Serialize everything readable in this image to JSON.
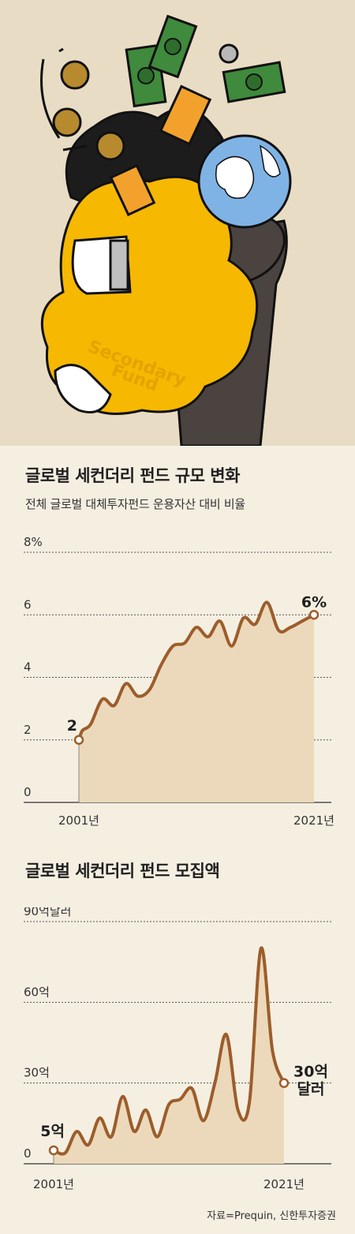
{
  "illustration": {
    "bag_text": "Secondary\nFund",
    "colors": {
      "background": "#e9dcc4",
      "bag": "#f6b800",
      "hair": "#1c1c1c",
      "arm": "#4a4340",
      "money": "#3f8a3c",
      "coin": "#b88a2e",
      "globe": "#7fb3e6"
    }
  },
  "chart_data": [
    {
      "type": "area",
      "title": "글로벌 세컨더리 펀드 규모 변화",
      "subtitle": "전체 글로벌 대체투자펀드 운용자산 대비 비율",
      "ylabel": "",
      "yticks": [
        "8%",
        "6",
        "4",
        "2",
        "0"
      ],
      "ylim": [
        0,
        8
      ],
      "xticks": [
        "2001년",
        "2021년"
      ],
      "x": [
        2001,
        2001.3,
        2002,
        2003,
        2004,
        2005,
        2006,
        2007,
        2008,
        2009,
        2010,
        2011,
        2012,
        2013,
        2014,
        2015,
        2016,
        2017,
        2018,
        2019,
        2020,
        2021
      ],
      "values": [
        2.0,
        2.3,
        2.5,
        3.3,
        3.1,
        3.8,
        3.4,
        3.6,
        4.4,
        5.0,
        5.1,
        5.6,
        5.3,
        5.8,
        5.0,
        5.9,
        5.7,
        6.4,
        5.5,
        5.6,
        5.8,
        6.0
      ],
      "annotations": [
        {
          "x": 2001,
          "y": 2,
          "label": "2"
        },
        {
          "x": 2021,
          "y": 6,
          "label": "6%"
        }
      ],
      "colors": {
        "line": "#9c5d2b",
        "fill": "#ecd9bb",
        "grid": "#555555"
      }
    },
    {
      "type": "area",
      "title": "글로벌 세컨더리 펀드 모집액",
      "ylabel": "",
      "yticks": [
        "90억달러",
        "60억",
        "30억",
        "0"
      ],
      "ylim": [
        0,
        90
      ],
      "xticks": [
        "2001년",
        "2021년"
      ],
      "x": [
        2001,
        2002,
        2003,
        2004,
        2005,
        2006,
        2007,
        2008,
        2009,
        2010,
        2011,
        2012,
        2013,
        2014,
        2015,
        2016,
        2017,
        2018,
        2019,
        2020,
        2021
      ],
      "values": [
        5,
        4,
        12,
        7,
        17,
        10,
        25,
        12,
        20,
        10,
        22,
        24,
        28,
        16,
        30,
        48,
        20,
        23,
        80,
        42,
        30
      ],
      "annotations": [
        {
          "x": 2001,
          "y": 5,
          "label": "5억"
        },
        {
          "x": 2021,
          "y": 30,
          "label": "30억\n달러"
        }
      ],
      "colors": {
        "line": "#9c5d2b",
        "fill": "#ecd9bb",
        "grid": "#555555"
      }
    }
  ],
  "source": "자료=Prequin, 신한투자증권"
}
